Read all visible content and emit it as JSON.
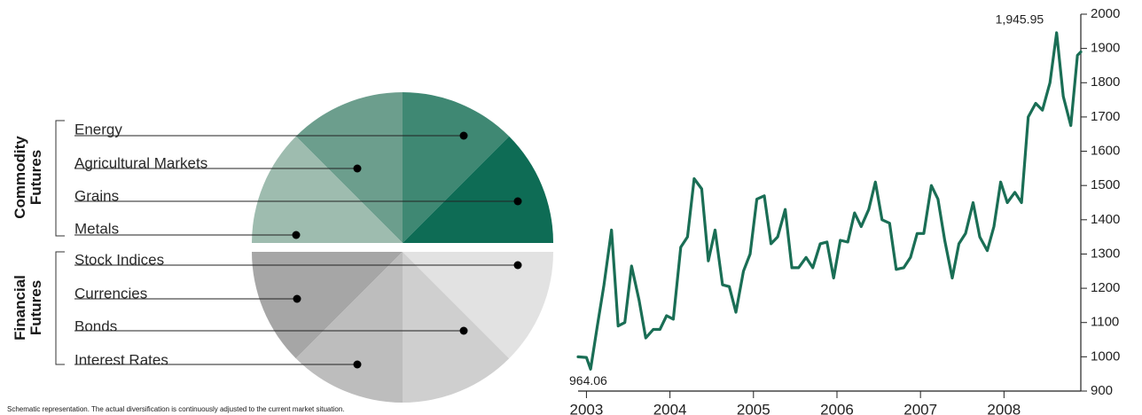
{
  "groups": [
    {
      "label_lines": [
        "Commodity",
        "Futures"
      ]
    },
    {
      "label_lines": [
        "Financial",
        "Futures"
      ]
    }
  ],
  "segments": [
    {
      "label": "Energy",
      "color": "#3f8873"
    },
    {
      "label": "Agricultural Markets",
      "color": "#6c9e8d"
    },
    {
      "label": "Grains",
      "color": "#0e6c55"
    },
    {
      "label": "Metals",
      "color": "#9ebcaf"
    },
    {
      "label": "Stock Indices",
      "color": "#e2e2e2"
    },
    {
      "label": "Currencies",
      "color": "#a6a6a6"
    },
    {
      "label": "Bonds",
      "color": "#cfcfcf"
    },
    {
      "label": "Interest Rates",
      "color": "#bdbdbd"
    }
  ],
  "footnote": "Schematic representation. The actual diversification is continuously adjusted to the current market situation.",
  "chart_data": [
    {
      "type": "pie",
      "categories": [
        "Energy",
        "Agricultural Markets",
        "Grains",
        "Metals",
        "Stock Indices",
        "Currencies",
        "Bonds",
        "Interest Rates"
      ],
      "values": [
        1,
        1,
        1,
        1,
        1,
        1,
        1,
        1
      ]
    },
    {
      "type": "line",
      "color": "#1a6e55",
      "x_ticks": [
        "2003",
        "2004",
        "2005",
        "2006",
        "2007",
        "2008"
      ],
      "yticks": [
        900,
        1000,
        1100,
        1200,
        1300,
        1400,
        1500,
        1600,
        1700,
        1800,
        1900,
        2000
      ],
      "ylim": [
        900,
        2000
      ],
      "xlim": [
        2002.9,
        2008.92
      ],
      "annotations": [
        {
          "text": "964.06",
          "x": 2003.05,
          "y": 964.06
        },
        {
          "text": "1,945.95",
          "x": 2008.55,
          "y": 1945.95
        }
      ],
      "x": [
        2002.9,
        2003.0,
        2003.05,
        2003.13,
        2003.21,
        2003.3,
        2003.38,
        2003.46,
        2003.54,
        2003.63,
        2003.71,
        2003.8,
        2003.88,
        2003.96,
        2004.04,
        2004.13,
        2004.21,
        2004.29,
        2004.38,
        2004.46,
        2004.54,
        2004.63,
        2004.71,
        2004.79,
        2004.88,
        2004.96,
        2005.04,
        2005.13,
        2005.21,
        2005.29,
        2005.38,
        2005.46,
        2005.54,
        2005.63,
        2005.71,
        2005.8,
        2005.88,
        2005.96,
        2006.04,
        2006.13,
        2006.21,
        2006.29,
        2006.38,
        2006.46,
        2006.54,
        2006.63,
        2006.71,
        2006.8,
        2006.88,
        2006.96,
        2007.04,
        2007.13,
        2007.21,
        2007.29,
        2007.38,
        2007.46,
        2007.54,
        2007.63,
        2007.71,
        2007.8,
        2007.88,
        2007.96,
        2008.04,
        2008.13,
        2008.21,
        2008.29,
        2008.38,
        2008.46,
        2008.55,
        2008.63,
        2008.71,
        2008.8,
        2008.88,
        2008.92
      ],
      "y": [
        1000,
        998,
        964,
        1090,
        1210,
        1370,
        1090,
        1100,
        1265,
        1165,
        1055,
        1080,
        1080,
        1120,
        1110,
        1320,
        1350,
        1520,
        1490,
        1280,
        1370,
        1210,
        1205,
        1130,
        1250,
        1300,
        1460,
        1470,
        1330,
        1350,
        1430,
        1260,
        1260,
        1290,
        1260,
        1330,
        1335,
        1230,
        1340,
        1335,
        1420,
        1380,
        1430,
        1510,
        1400,
        1390,
        1255,
        1260,
        1290,
        1360,
        1360,
        1500,
        1460,
        1340,
        1230,
        1330,
        1360,
        1450,
        1350,
        1310,
        1380,
        1510,
        1450,
        1480,
        1450,
        1700,
        1740,
        1720,
        1800,
        1945.95,
        1760,
        1675,
        1880,
        1890
      ]
    }
  ]
}
